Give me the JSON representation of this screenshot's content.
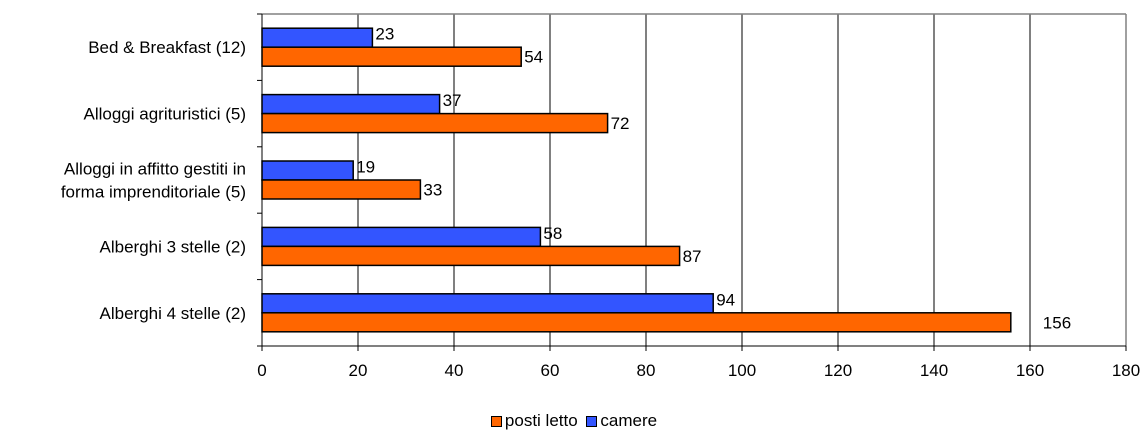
{
  "chart_data": {
    "type": "bar",
    "orientation": "horizontal",
    "title": "",
    "xlabel": "",
    "ylabel": "",
    "categories": [
      [
        "Bed & Breakfast (12)"
      ],
      [
        "Alloggi agrituristici (5)"
      ],
      [
        "Alloggi in affitto gestiti in",
        "forma imprenditoriale (5)"
      ],
      [
        "Alberghi 3 stelle (2)"
      ],
      [
        "Alberghi 4 stelle (2)"
      ]
    ],
    "series": [
      {
        "name": "camere",
        "color": "#3355ff",
        "values": [
          23,
          37,
          19,
          58,
          94
        ]
      },
      {
        "name": "posti letto",
        "color": "#ff6600",
        "values": [
          54,
          72,
          33,
          87,
          156
        ]
      }
    ],
    "xlim": [
      0,
      180
    ],
    "xticks": [
      0,
      20,
      40,
      60,
      80,
      100,
      120,
      140,
      160,
      180
    ],
    "grid": "vertical",
    "legend": "bottom",
    "legend_order": [
      "posti letto",
      "camere"
    ]
  }
}
